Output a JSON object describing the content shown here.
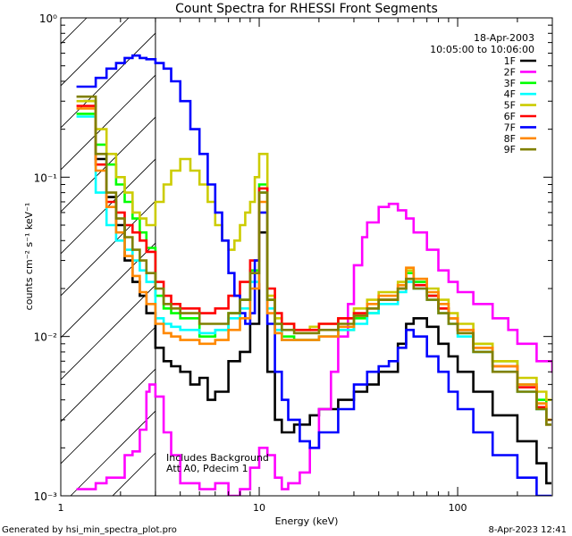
{
  "footer": {
    "generated_by": "Generated by hsi_min_spectra_plot.pro",
    "date": "8-Apr-2023 12:41"
  },
  "chart_data": {
    "type": "line",
    "title": "Count Spectra for RHESSI Front Segments",
    "xlabel": "Energy (keV)",
    "ylabel": "counts cm⁻² s⁻¹ keV⁻¹",
    "xscale": "log",
    "yscale": "log",
    "xlim": [
      1,
      300
    ],
    "ylim": [
      0.001,
      1
    ],
    "x_ticks": [
      {
        "value": 1,
        "label": "1"
      },
      {
        "value": 10,
        "label": "10"
      },
      {
        "value": 100,
        "label": "100"
      }
    ],
    "y_ticks": [
      {
        "value": 1,
        "label": "10⁰"
      },
      {
        "value": 0.1,
        "label": "10⁻¹"
      },
      {
        "value": 0.01,
        "label": "10⁻²"
      },
      {
        "value": 0.001,
        "label": "10⁻³"
      }
    ],
    "date": "18-Apr-2003",
    "time_range": "10:05:00 to 10:06:00",
    "annotations": [
      "Includes Background",
      "Att A0, Pdecim 1"
    ],
    "hatched_region": {
      "xmin": 1,
      "xmax": 3
    },
    "legend_position": "top-right",
    "series": [
      {
        "name": "1F",
        "color": "#000000",
        "x": [
          1.3,
          1.5,
          1.7,
          1.9,
          2.1,
          2.3,
          2.5,
          2.7,
          3.0,
          3.3,
          3.6,
          4.0,
          4.5,
          5,
          5.5,
          6,
          7,
          8,
          9,
          10,
          11,
          12,
          13,
          15,
          18,
          20,
          25,
          30,
          35,
          40,
          50,
          55,
          60,
          70,
          80,
          90,
          100,
          120,
          150,
          200,
          250,
          280
        ],
        "y": [
          0.3,
          0.13,
          0.075,
          0.05,
          0.03,
          0.022,
          0.018,
          0.014,
          0.0085,
          0.007,
          0.0065,
          0.006,
          0.005,
          0.0055,
          0.004,
          0.0045,
          0.007,
          0.008,
          0.012,
          0.045,
          0.006,
          0.003,
          0.0025,
          0.0028,
          0.0032,
          0.0035,
          0.004,
          0.0045,
          0.005,
          0.006,
          0.009,
          0.012,
          0.013,
          0.0115,
          0.009,
          0.0075,
          0.006,
          0.0045,
          0.0032,
          0.0022,
          0.0016,
          0.0012
        ]
      },
      {
        "name": "2F",
        "color": "#ff00ff",
        "x": [
          1.2,
          1.5,
          1.7,
          1.9,
          2.1,
          2.3,
          2.5,
          2.7,
          2.8,
          3.0,
          3.3,
          3.6,
          4.0,
          5,
          6,
          7,
          8,
          9,
          10,
          11,
          12,
          13,
          14,
          16,
          18,
          20,
          23,
          25,
          28,
          30,
          33,
          35,
          40,
          45,
          50,
          55,
          60,
          70,
          80,
          90,
          100,
          120,
          150,
          180,
          200,
          250,
          300
        ],
        "y": [
          0.0011,
          0.0012,
          0.0013,
          0.0013,
          0.0018,
          0.0019,
          0.0026,
          0.0045,
          0.005,
          0.0042,
          0.0025,
          0.0018,
          0.0012,
          0.0011,
          0.0012,
          0.001,
          0.0011,
          0.0015,
          0.002,
          0.0018,
          0.0013,
          0.0011,
          0.0012,
          0.0014,
          0.002,
          0.0035,
          0.006,
          0.01,
          0.016,
          0.028,
          0.042,
          0.052,
          0.065,
          0.068,
          0.062,
          0.055,
          0.045,
          0.035,
          0.026,
          0.022,
          0.019,
          0.016,
          0.013,
          0.011,
          0.009,
          0.007,
          0.006
        ]
      },
      {
        "name": "3F",
        "color": "#00ff00",
        "x": [
          1.2,
          1.5,
          1.7,
          1.9,
          2.1,
          2.3,
          2.5,
          2.7,
          3.0,
          3.3,
          3.6,
          4.0,
          5,
          6,
          7,
          8,
          9,
          10,
          11,
          12,
          13,
          15,
          18,
          20,
          25,
          30,
          35,
          40,
          50,
          55,
          60,
          70,
          80,
          90,
          100,
          120,
          150,
          200,
          250,
          280
        ],
        "y": [
          0.25,
          0.16,
          0.12,
          0.09,
          0.07,
          0.055,
          0.045,
          0.036,
          0.018,
          0.015,
          0.014,
          0.013,
          0.01,
          0.011,
          0.014,
          0.017,
          0.026,
          0.09,
          0.017,
          0.012,
          0.01,
          0.0095,
          0.0095,
          0.01,
          0.011,
          0.013,
          0.014,
          0.017,
          0.02,
          0.025,
          0.022,
          0.018,
          0.015,
          0.013,
          0.011,
          0.009,
          0.007,
          0.005,
          0.004,
          0.003
        ]
      },
      {
        "name": "4F",
        "color": "#00ffff",
        "x": [
          1.2,
          1.5,
          1.7,
          1.9,
          2.1,
          2.3,
          2.5,
          2.7,
          3.0,
          3.3,
          3.6,
          4.0,
          5,
          6,
          7,
          8,
          9,
          10,
          11,
          12,
          13,
          15,
          18,
          20,
          25,
          30,
          35,
          40,
          50,
          55,
          60,
          70,
          80,
          90,
          100,
          120,
          150,
          200,
          250,
          280
        ],
        "y": [
          0.24,
          0.08,
          0.05,
          0.04,
          0.035,
          0.03,
          0.026,
          0.022,
          0.013,
          0.012,
          0.0115,
          0.011,
          0.0105,
          0.011,
          0.013,
          0.015,
          0.022,
          0.08,
          0.015,
          0.011,
          0.0095,
          0.0095,
          0.0095,
          0.01,
          0.011,
          0.012,
          0.014,
          0.016,
          0.019,
          0.022,
          0.02,
          0.017,
          0.014,
          0.012,
          0.01,
          0.008,
          0.006,
          0.0045,
          0.0035,
          0.0028
        ]
      },
      {
        "name": "5F",
        "color": "#cccc00",
        "x": [
          1.2,
          1.5,
          1.7,
          1.9,
          2.1,
          2.3,
          2.5,
          2.7,
          3.0,
          3.3,
          3.6,
          4.0,
          4.5,
          5,
          5.5,
          6,
          6.5,
          7,
          7.5,
          8,
          8.5,
          9,
          9.5,
          10,
          11,
          12,
          13,
          15,
          18,
          20,
          25,
          30,
          35,
          40,
          50,
          55,
          60,
          70,
          80,
          90,
          100,
          120,
          150,
          200,
          250,
          280
        ],
        "y": [
          0.3,
          0.2,
          0.14,
          0.1,
          0.08,
          0.06,
          0.055,
          0.05,
          0.07,
          0.09,
          0.11,
          0.13,
          0.11,
          0.09,
          0.07,
          0.05,
          0.04,
          0.035,
          0.04,
          0.05,
          0.06,
          0.07,
          0.1,
          0.14,
          0.018,
          0.013,
          0.012,
          0.011,
          0.0115,
          0.012,
          0.013,
          0.015,
          0.017,
          0.019,
          0.022,
          0.026,
          0.023,
          0.02,
          0.017,
          0.014,
          0.012,
          0.009,
          0.007,
          0.0055,
          0.0045,
          0.004
        ]
      },
      {
        "name": "6F",
        "color": "#ff0000",
        "x": [
          1.2,
          1.5,
          1.7,
          1.9,
          2.1,
          2.3,
          2.5,
          2.7,
          3.0,
          3.3,
          3.6,
          4.0,
          5,
          6,
          7,
          8,
          9,
          10,
          11,
          12,
          13,
          15,
          18,
          20,
          25,
          30,
          35,
          40,
          50,
          55,
          60,
          70,
          80,
          90,
          100,
          120,
          150,
          200,
          250,
          280
        ],
        "y": [
          0.28,
          0.12,
          0.07,
          0.06,
          0.05,
          0.045,
          0.04,
          0.034,
          0.022,
          0.018,
          0.016,
          0.015,
          0.014,
          0.015,
          0.018,
          0.022,
          0.03,
          0.085,
          0.02,
          0.014,
          0.012,
          0.011,
          0.011,
          0.012,
          0.013,
          0.014,
          0.015,
          0.017,
          0.02,
          0.023,
          0.021,
          0.018,
          0.015,
          0.013,
          0.011,
          0.0085,
          0.0065,
          0.0048,
          0.0036,
          0.0028
        ]
      },
      {
        "name": "7F",
        "color": "#0000ff",
        "x": [
          1.2,
          1.5,
          1.7,
          1.9,
          2.1,
          2.3,
          2.5,
          2.7,
          3.0,
          3.3,
          3.6,
          4.0,
          4.5,
          5,
          5.5,
          6,
          6.5,
          7,
          7.5,
          8,
          8.5,
          9,
          9.5,
          10,
          11,
          12,
          13,
          14,
          16,
          18,
          20,
          25,
          30,
          35,
          40,
          45,
          50,
          55,
          60,
          70,
          80,
          90,
          100,
          120,
          150,
          200,
          250,
          280
        ],
        "y": [
          0.37,
          0.42,
          0.48,
          0.52,
          0.56,
          0.58,
          0.56,
          0.55,
          0.52,
          0.48,
          0.4,
          0.3,
          0.2,
          0.14,
          0.09,
          0.06,
          0.04,
          0.025,
          0.018,
          0.014,
          0.012,
          0.014,
          0.03,
          0.06,
          0.012,
          0.006,
          0.004,
          0.003,
          0.0022,
          0.002,
          0.0025,
          0.0035,
          0.005,
          0.006,
          0.0065,
          0.007,
          0.0085,
          0.011,
          0.01,
          0.0075,
          0.006,
          0.0045,
          0.0035,
          0.0025,
          0.0018,
          0.0013,
          0.001,
          0.001
        ]
      },
      {
        "name": "8F",
        "color": "#ff8800",
        "x": [
          1.2,
          1.5,
          1.7,
          1.9,
          2.1,
          2.3,
          2.5,
          2.7,
          3.0,
          3.3,
          3.6,
          4.0,
          5,
          6,
          7,
          8,
          9,
          10,
          11,
          12,
          13,
          15,
          18,
          20,
          25,
          30,
          35,
          40,
          50,
          55,
          60,
          70,
          80,
          90,
          100,
          120,
          150,
          200,
          250,
          280
        ],
        "y": [
          0.27,
          0.11,
          0.065,
          0.045,
          0.032,
          0.024,
          0.019,
          0.016,
          0.012,
          0.0105,
          0.01,
          0.0095,
          0.009,
          0.0095,
          0.011,
          0.013,
          0.02,
          0.07,
          0.014,
          0.0105,
          0.0095,
          0.0095,
          0.0095,
          0.01,
          0.0115,
          0.0135,
          0.016,
          0.018,
          0.021,
          0.027,
          0.023,
          0.019,
          0.016,
          0.013,
          0.011,
          0.0085,
          0.0065,
          0.005,
          0.0038,
          0.003
        ]
      },
      {
        "name": "9F",
        "color": "#808000",
        "x": [
          1.2,
          1.5,
          1.7,
          1.9,
          2.1,
          2.3,
          2.5,
          2.7,
          3.0,
          3.3,
          3.6,
          4.0,
          5,
          6,
          7,
          8,
          9,
          10,
          11,
          12,
          13,
          15,
          18,
          20,
          25,
          30,
          35,
          40,
          50,
          55,
          60,
          70,
          80,
          90,
          100,
          120,
          150,
          200,
          250,
          280
        ],
        "y": [
          0.32,
          0.14,
          0.08,
          0.055,
          0.042,
          0.035,
          0.03,
          0.025,
          0.02,
          0.016,
          0.015,
          0.014,
          0.012,
          0.012,
          0.014,
          0.017,
          0.025,
          0.08,
          0.017,
          0.012,
          0.011,
          0.0105,
          0.0105,
          0.011,
          0.012,
          0.0135,
          0.015,
          0.017,
          0.02,
          0.023,
          0.02,
          0.017,
          0.014,
          0.012,
          0.0105,
          0.008,
          0.006,
          0.0045,
          0.0035,
          0.0028
        ]
      }
    ]
  }
}
